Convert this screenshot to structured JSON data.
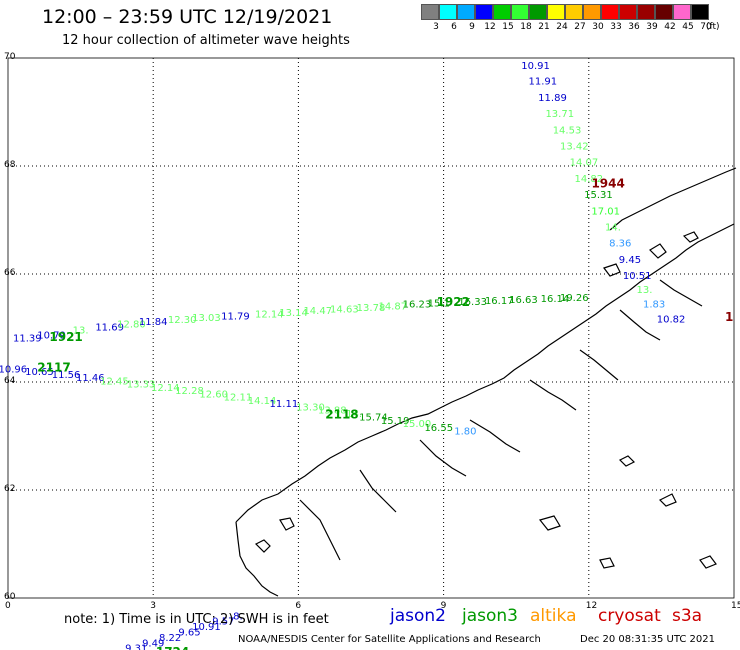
{
  "title": "12:00 – 23:59 UTC 12/19/2021",
  "subtitle": "12 hour collection of altimeter wave heights",
  "scale": {
    "labels": [
      "3",
      "6",
      "9",
      "12",
      "15",
      "18",
      "21",
      "24",
      "27",
      "30",
      "33",
      "36",
      "39",
      "42",
      "45",
      "70"
    ],
    "colors": [
      "#808080",
      "#00ffff",
      "#00aaff",
      "#0000ff",
      "#00cc00",
      "#33ff33",
      "#009900",
      "#ffff00",
      "#ffcc00",
      "#ff9900",
      "#ff0000",
      "#cc0000",
      "#990000",
      "#660000",
      "#ff66cc",
      "#000000"
    ],
    "unit": "(ft)"
  },
  "axes": {
    "lat_labels": [
      "70",
      "68",
      "66",
      "64",
      "62",
      "60"
    ],
    "lon_labels": [
      "0",
      "3",
      "6",
      "9",
      "12",
      "15"
    ]
  },
  "colors": {
    "jason2": "#0000cc",
    "jason3": "#009900",
    "altika": "#ff9900",
    "cryosat": "#cc0000",
    "s3a": "#cc0000",
    "lightgreen": "#66ff66",
    "lightblue": "#3399ff",
    "darkred": "#880000"
  },
  "tracks": [
    {
      "id": "1944",
      "label": "1944",
      "color": "#880000",
      "points": [
        {
          "lon": 10.9,
          "lat": 69.87,
          "v": "10.91",
          "c": "#0000cc"
        },
        {
          "lon": 11.05,
          "lat": 69.58,
          "v": "11.91",
          "c": "#0000cc"
        },
        {
          "lon": 11.25,
          "lat": 69.28,
          "v": "11.89",
          "c": "#0000cc"
        },
        {
          "lon": 11.4,
          "lat": 68.98,
          "v": "13.71",
          "c": "#66ff66"
        },
        {
          "lon": 11.55,
          "lat": 68.68,
          "v": "14.53",
          "c": "#66ff66"
        },
        {
          "lon": 11.7,
          "lat": 68.38,
          "v": "13.42",
          "c": "#66ff66"
        },
        {
          "lon": 11.9,
          "lat": 68.08,
          "v": "14.07",
          "c": "#66ff66"
        },
        {
          "lon": 12.0,
          "lat": 67.78,
          "v": "14.82",
          "c": "#66ff66"
        },
        {
          "lon": 12.2,
          "lat": 67.48,
          "v": "15.31",
          "c": "#009900"
        },
        {
          "lon": 12.35,
          "lat": 67.18,
          "v": "17.01",
          "c": "#33ff33"
        },
        {
          "lon": 12.5,
          "lat": 66.88,
          "v": "14.",
          "c": "#66ff66"
        },
        {
          "lon": 12.65,
          "lat": 66.58,
          "v": "8.36",
          "c": "#3399ff"
        },
        {
          "lon": 12.85,
          "lat": 66.28,
          "v": "9.45",
          "c": "#0000cc"
        },
        {
          "lon": 13.0,
          "lat": 65.98,
          "v": "10.51",
          "c": "#0000cc"
        },
        {
          "lon": 13.15,
          "lat": 65.72,
          "v": "13.",
          "c": "#66ff66"
        },
        {
          "lon": 13.35,
          "lat": 65.45,
          "v": "1.83",
          "c": "#3399ff"
        },
        {
          "lon": 13.7,
          "lat": 65.18,
          "v": "10.82",
          "c": "#0000cc"
        }
      ]
    },
    {
      "id": "1922",
      "label": "1922",
      "color": "#009900",
      "points": [
        {
          "lon": 0.4,
          "lat": 64.82,
          "v": "11.39",
          "c": "#0000cc"
        },
        {
          "lon": 0.9,
          "lat": 64.88,
          "v": "10.79",
          "c": "#0000cc"
        },
        {
          "lon": 1.5,
          "lat": 64.97,
          "v": "13.",
          "c": "#66ff66"
        },
        {
          "lon": 2.1,
          "lat": 65.03,
          "v": "11.69",
          "c": "#0000cc"
        },
        {
          "lon": 2.55,
          "lat": 65.08,
          "v": "12.80",
          "c": "#66ff66"
        },
        {
          "lon": 3.0,
          "lat": 65.13,
          "v": "11.84",
          "c": "#0000cc"
        },
        {
          "lon": 3.6,
          "lat": 65.17,
          "v": "12.30",
          "c": "#66ff66"
        },
        {
          "lon": 4.1,
          "lat": 65.2,
          "v": "13.03",
          "c": "#66ff66"
        },
        {
          "lon": 4.7,
          "lat": 65.23,
          "v": "11.79",
          "c": "#0000cc"
        },
        {
          "lon": 5.4,
          "lat": 65.27,
          "v": "12.14",
          "c": "#66ff66"
        },
        {
          "lon": 5.9,
          "lat": 65.3,
          "v": "13.14",
          "c": "#66ff66"
        },
        {
          "lon": 6.4,
          "lat": 65.33,
          "v": "14.47",
          "c": "#66ff66"
        },
        {
          "lon": 6.95,
          "lat": 65.36,
          "v": "14.63",
          "c": "#66ff66"
        },
        {
          "lon": 7.5,
          "lat": 65.39,
          "v": "13.78",
          "c": "#66ff66"
        },
        {
          "lon": 7.95,
          "lat": 65.42,
          "v": "14.87",
          "c": "#66ff66"
        },
        {
          "lon": 8.45,
          "lat": 65.45,
          "v": "16.23",
          "c": "#009900"
        },
        {
          "lon": 8.9,
          "lat": 65.47,
          "v": "15.1",
          "c": "#009900"
        },
        {
          "lon": 9.6,
          "lat": 65.5,
          "v": "16.33",
          "c": "#009900"
        },
        {
          "lon": 10.15,
          "lat": 65.52,
          "v": "16.17",
          "c": "#009900"
        },
        {
          "lon": 10.65,
          "lat": 65.54,
          "v": "16.63",
          "c": "#009900"
        },
        {
          "lon": 11.3,
          "lat": 65.56,
          "v": "16.14",
          "c": "#009900"
        },
        {
          "lon": 11.7,
          "lat": 65.57,
          "v": "19.26",
          "c": "#009900"
        }
      ]
    },
    {
      "id": "2118",
      "label": "2118",
      "color": "#009900",
      "points": [
        {
          "lon": 0.1,
          "lat": 64.25,
          "v": "10.96",
          "c": "#0000cc"
        },
        {
          "lon": 0.65,
          "lat": 64.2,
          "v": "10.65",
          "c": "#0000cc"
        },
        {
          "lon": 1.2,
          "lat": 64.15,
          "v": "11.56",
          "c": "#0000cc"
        },
        {
          "lon": 1.7,
          "lat": 64.09,
          "v": "11.46",
          "c": "#0000cc"
        },
        {
          "lon": 2.2,
          "lat": 64.03,
          "v": "12.45",
          "c": "#66ff66"
        },
        {
          "lon": 2.75,
          "lat": 63.97,
          "v": "13.33",
          "c": "#66ff66"
        },
        {
          "lon": 3.25,
          "lat": 63.91,
          "v": "12.14",
          "c": "#66ff66"
        },
        {
          "lon": 3.75,
          "lat": 63.85,
          "v": "12.28",
          "c": "#66ff66"
        },
        {
          "lon": 4.25,
          "lat": 63.79,
          "v": "12.60",
          "c": "#66ff66"
        },
        {
          "lon": 4.75,
          "lat": 63.73,
          "v": "12.11",
          "c": "#66ff66"
        },
        {
          "lon": 5.25,
          "lat": 63.67,
          "v": "14.14",
          "c": "#66ff66"
        },
        {
          "lon": 5.7,
          "lat": 63.61,
          "v": "11.11",
          "c": "#0000cc"
        },
        {
          "lon": 6.25,
          "lat": 63.55,
          "v": "13.30",
          "c": "#66ff66"
        },
        {
          "lon": 6.7,
          "lat": 63.49,
          "v": "13.88",
          "c": "#66ff66"
        },
        {
          "lon": 7.15,
          "lat": 63.43,
          "v": "14.",
          "c": "#66ff66"
        },
        {
          "lon": 7.55,
          "lat": 63.36,
          "v": "15.74",
          "c": "#009900"
        },
        {
          "lon": 8.0,
          "lat": 63.3,
          "v": "15.19",
          "c": "#009900"
        },
        {
          "lon": 8.45,
          "lat": 63.24,
          "v": "15.00",
          "c": "#66ff66"
        },
        {
          "lon": 8.9,
          "lat": 63.17,
          "v": "16.55",
          "c": "#009900"
        },
        {
          "lon": 9.45,
          "lat": 63.1,
          "v": "1.80",
          "c": "#3399ff"
        }
      ]
    },
    {
      "id": "1724",
      "label": "1724",
      "color": "#009900",
      "points": [
        {
          "lon": 2.65,
          "lat": 59.08,
          "v": "9.31",
          "c": "#0000cc"
        },
        {
          "lon": 3.0,
          "lat": 59.18,
          "v": "9.49",
          "c": "#0000cc"
        },
        {
          "lon": 3.35,
          "lat": 59.28,
          "v": "8.22",
          "c": "#0000cc"
        },
        {
          "lon": 3.75,
          "lat": 59.38,
          "v": "9.65",
          "c": "#0000cc"
        },
        {
          "lon": 4.1,
          "lat": 59.48,
          "v": "10.91",
          "c": "#0000cc"
        },
        {
          "lon": 4.45,
          "lat": 59.58,
          "v": "9.57",
          "c": "#0000cc"
        },
        {
          "lon": 4.75,
          "lat": 59.68,
          "v": "8.",
          "c": "#0000cc"
        }
      ]
    }
  ],
  "track_labels": [
    {
      "text": "1944",
      "lon": 12.4,
      "lat": 67.68,
      "c": "#880000"
    },
    {
      "text": "1922",
      "lon": 9.2,
      "lat": 65.48,
      "c": "#009900"
    },
    {
      "text": "1921",
      "lon": 1.2,
      "lat": 64.83,
      "c": "#009900"
    },
    {
      "text": "2117",
      "lon": 0.95,
      "lat": 64.27,
      "c": "#009900"
    },
    {
      "text": "2118",
      "lon": 6.9,
      "lat": 63.4,
      "c": "#009900"
    },
    {
      "text": "1724",
      "lon": 3.4,
      "lat": 59.0,
      "c": "#009900"
    },
    {
      "text": "1",
      "lon": 14.9,
      "lat": 65.2,
      "c": "#880000"
    }
  ],
  "note": "note: 1) Time is in UTC; 2) SWH is in feet",
  "satellites": [
    {
      "name": "jason2",
      "color": "#0000cc"
    },
    {
      "name": "jason3",
      "color": "#009900"
    },
    {
      "name": "altika",
      "color": "#ff9900"
    },
    {
      "name": "cryosat",
      "color": "#cc0000"
    },
    {
      "name": "s3a",
      "color": "#cc0000"
    }
  ],
  "footer_left": "NOAA/NESDIS Center for Satellite Applications and Research",
  "footer_right": "Dec 20 08:31:35 UTC 2021"
}
